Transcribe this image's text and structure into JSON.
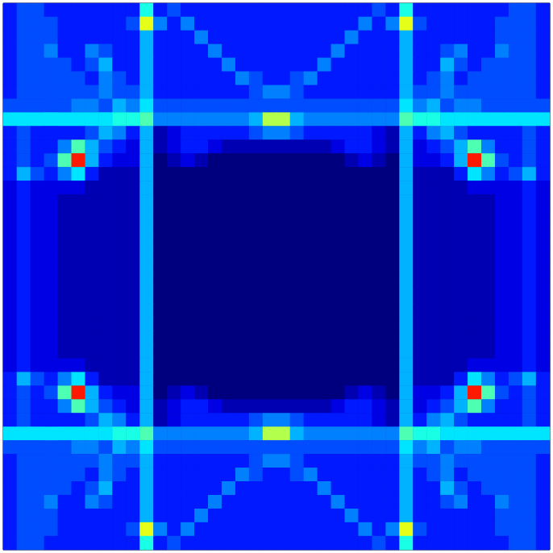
{
  "chart_data": {
    "type": "heatmap",
    "tick_labels": false,
    "zlim": [
      0,
      20
    ],
    "cells": [
      [
        3,
        4,
        4,
        3,
        3,
        3,
        3,
        3,
        3,
        3,
        8,
        3,
        4,
        3,
        3,
        3,
        3,
        3,
        3,
        3,
        3,
        3,
        3,
        3,
        3,
        3,
        3,
        4,
        3,
        8,
        3,
        3,
        3,
        3,
        3,
        3,
        3,
        4,
        4,
        3
      ],
      [
        3,
        4,
        4,
        4,
        3,
        3,
        3,
        3,
        3,
        4,
        12,
        5,
        3,
        5,
        3,
        3,
        3,
        3,
        3,
        3,
        3,
        3,
        3,
        3,
        3,
        3,
        5,
        3,
        5,
        12,
        4,
        3,
        3,
        3,
        3,
        3,
        4,
        4,
        4,
        3
      ],
      [
        3,
        4,
        4,
        4,
        3,
        3,
        3,
        3,
        3,
        3,
        6,
        3,
        3,
        3,
        5,
        3,
        3,
        3,
        3,
        3,
        3,
        3,
        3,
        3,
        3,
        5,
        3,
        3,
        3,
        6,
        3,
        3,
        3,
        3,
        3,
        3,
        4,
        4,
        4,
        3
      ],
      [
        3,
        4,
        4,
        5,
        3,
        3,
        5,
        4,
        3,
        3,
        6,
        3,
        3,
        3,
        3,
        5,
        3,
        3,
        3,
        3,
        3,
        3,
        3,
        3,
        5,
        3,
        3,
        3,
        3,
        6,
        3,
        3,
        4,
        5,
        3,
        3,
        5,
        4,
        4,
        3
      ],
      [
        3,
        4,
        4,
        4,
        4,
        3,
        4,
        6,
        3,
        3,
        6,
        3,
        3,
        3,
        3,
        3,
        5,
        3,
        3,
        3,
        3,
        3,
        3,
        5,
        3,
        3,
        3,
        3,
        3,
        6,
        3,
        3,
        6,
        4,
        3,
        4,
        4,
        4,
        4,
        3
      ],
      [
        3,
        4,
        4,
        4,
        4,
        4,
        3,
        5,
        4,
        3,
        6,
        3,
        3,
        3,
        3,
        3,
        3,
        5,
        4,
        3,
        3,
        4,
        5,
        3,
        3,
        3,
        3,
        3,
        3,
        6,
        3,
        4,
        5,
        3,
        4,
        4,
        4,
        4,
        4,
        3
      ],
      [
        3,
        4,
        4,
        4,
        4,
        4,
        4,
        5,
        4,
        4,
        6,
        3,
        3,
        3,
        3,
        3,
        3,
        3,
        4,
        5,
        5,
        4,
        3,
        3,
        3,
        3,
        3,
        3,
        3,
        6,
        4,
        4,
        5,
        4,
        4,
        4,
        4,
        4,
        4,
        3
      ],
      [
        4,
        4,
        4,
        4,
        4,
        5,
        5,
        4,
        6,
        5,
        7,
        4,
        4,
        4,
        4,
        4,
        4,
        4,
        4,
        4,
        4,
        4,
        4,
        4,
        4,
        4,
        4,
        4,
        4,
        7,
        5,
        6,
        4,
        5,
        5,
        4,
        4,
        4,
        4,
        4
      ],
      [
        7,
        7,
        7,
        7,
        7,
        7,
        7,
        7,
        8,
        8,
        9,
        5,
        5,
        5,
        5,
        5,
        5,
        5,
        6,
        11,
        11,
        6,
        5,
        5,
        5,
        5,
        5,
        5,
        5,
        9,
        8,
        8,
        7,
        7,
        7,
        7,
        7,
        7,
        7,
        7
      ],
      [
        3,
        4,
        3,
        3,
        3,
        3,
        4,
        6,
        5,
        3,
        6,
        1,
        2,
        3,
        3,
        3,
        3,
        3,
        4,
        5,
        5,
        4,
        3,
        3,
        3,
        3,
        3,
        2,
        1,
        6,
        3,
        5,
        6,
        4,
        3,
        3,
        3,
        3,
        4,
        3
      ],
      [
        3,
        4,
        3,
        3,
        5,
        9,
        6,
        4,
        3,
        2,
        6,
        1,
        2,
        3,
        3,
        2,
        1,
        1,
        1,
        1,
        1,
        1,
        1,
        1,
        2,
        3,
        3,
        2,
        1,
        6,
        2,
        3,
        4,
        6,
        9,
        5,
        3,
        3,
        4,
        3
      ],
      [
        3,
        4,
        3,
        4,
        9,
        17,
        6,
        3,
        2,
        2,
        6,
        0,
        1,
        2,
        1,
        0,
        0,
        0,
        0,
        0,
        0,
        0,
        0,
        0,
        0,
        1,
        2,
        1,
        0,
        6,
        2,
        2,
        3,
        6,
        17,
        9,
        4,
        3,
        4,
        3
      ],
      [
        3,
        6,
        4,
        3,
        5,
        7,
        3,
        1,
        1,
        1,
        6,
        0,
        0,
        0,
        0,
        0,
        0,
        0,
        0,
        0,
        0,
        0,
        0,
        0,
        0,
        0,
        0,
        0,
        0,
        6,
        1,
        1,
        1,
        3,
        7,
        5,
        3,
        4,
        6,
        3
      ],
      [
        2,
        3,
        2,
        2,
        2,
        2,
        1,
        1,
        1,
        1,
        6,
        0,
        0,
        0,
        0,
        0,
        0,
        0,
        0,
        0,
        0,
        0,
        0,
        0,
        0,
        0,
        0,
        0,
        0,
        6,
        1,
        1,
        1,
        1,
        2,
        2,
        2,
        2,
        3,
        2
      ],
      [
        2,
        3,
        2,
        2,
        1,
        1,
        1,
        1,
        1,
        1,
        6,
        0,
        0,
        0,
        0,
        0,
        0,
        0,
        0,
        0,
        0,
        0,
        0,
        0,
        0,
        0,
        0,
        0,
        0,
        6,
        1,
        1,
        1,
        1,
        1,
        1,
        2,
        2,
        3,
        2
      ],
      [
        2,
        3,
        2,
        2,
        1,
        1,
        1,
        1,
        1,
        1,
        6,
        0,
        0,
        0,
        0,
        0,
        0,
        0,
        0,
        0,
        0,
        0,
        0,
        0,
        0,
        0,
        0,
        0,
        0,
        6,
        1,
        1,
        1,
        1,
        1,
        1,
        2,
        2,
        3,
        2
      ],
      [
        2,
        3,
        2,
        2,
        1,
        1,
        1,
        1,
        1,
        1,
        6,
        0,
        0,
        0,
        0,
        0,
        0,
        0,
        0,
        0,
        0,
        0,
        0,
        0,
        0,
        0,
        0,
        0,
        0,
        6,
        1,
        1,
        1,
        1,
        1,
        1,
        2,
        2,
        3,
        2
      ],
      [
        2,
        3,
        2,
        2,
        1,
        1,
        1,
        1,
        1,
        1,
        6,
        0,
        0,
        0,
        0,
        0,
        0,
        0,
        0,
        0,
        0,
        0,
        0,
        0,
        0,
        0,
        0,
        0,
        0,
        6,
        1,
        1,
        1,
        1,
        1,
        1,
        2,
        2,
        3,
        2
      ],
      [
        2,
        3,
        2,
        2,
        1,
        1,
        1,
        1,
        1,
        1,
        6,
        0,
        0,
        0,
        0,
        0,
        0,
        0,
        0,
        0,
        0,
        0,
        0,
        0,
        0,
        0,
        0,
        0,
        0,
        6,
        1,
        1,
        1,
        1,
        1,
        1,
        2,
        2,
        3,
        2
      ],
      [
        2,
        3,
        2,
        2,
        1,
        1,
        1,
        1,
        1,
        1,
        6,
        0,
        0,
        0,
        0,
        0,
        0,
        0,
        0,
        0,
        0,
        0,
        0,
        0,
        0,
        0,
        0,
        0,
        0,
        6,
        1,
        1,
        1,
        1,
        1,
        1,
        2,
        2,
        3,
        2
      ],
      [
        2,
        3,
        2,
        2,
        1,
        1,
        1,
        1,
        1,
        1,
        6,
        0,
        0,
        0,
        0,
        0,
        0,
        0,
        0,
        0,
        0,
        0,
        0,
        0,
        0,
        0,
        0,
        0,
        0,
        6,
        1,
        1,
        1,
        1,
        1,
        1,
        2,
        2,
        3,
        2
      ],
      [
        2,
        3,
        2,
        2,
        1,
        1,
        1,
        1,
        1,
        1,
        6,
        0,
        0,
        0,
        0,
        0,
        0,
        0,
        0,
        0,
        0,
        0,
        0,
        0,
        0,
        0,
        0,
        0,
        0,
        6,
        1,
        1,
        1,
        1,
        1,
        1,
        2,
        2,
        3,
        2
      ],
      [
        2,
        3,
        2,
        2,
        1,
        1,
        1,
        1,
        1,
        1,
        6,
        0,
        0,
        0,
        0,
        0,
        0,
        0,
        0,
        0,
        0,
        0,
        0,
        0,
        0,
        0,
        0,
        0,
        0,
        6,
        1,
        1,
        1,
        1,
        1,
        1,
        2,
        2,
        3,
        2
      ],
      [
        2,
        3,
        2,
        2,
        1,
        1,
        1,
        1,
        1,
        1,
        6,
        0,
        0,
        0,
        0,
        0,
        0,
        0,
        0,
        0,
        0,
        0,
        0,
        0,
        0,
        0,
        0,
        0,
        0,
        6,
        1,
        1,
        1,
        1,
        1,
        1,
        2,
        2,
        3,
        2
      ],
      [
        2,
        3,
        2,
        2,
        1,
        1,
        1,
        1,
        1,
        1,
        6,
        0,
        0,
        0,
        0,
        0,
        0,
        0,
        0,
        0,
        0,
        0,
        0,
        0,
        0,
        0,
        0,
        0,
        0,
        6,
        1,
        1,
        1,
        1,
        1,
        1,
        2,
        2,
        3,
        2
      ],
      [
        2,
        3,
        2,
        2,
        1,
        1,
        1,
        1,
        1,
        1,
        6,
        0,
        0,
        0,
        0,
        0,
        0,
        0,
        0,
        0,
        0,
        0,
        0,
        0,
        0,
        0,
        0,
        0,
        0,
        6,
        1,
        1,
        1,
        1,
        1,
        1,
        2,
        2,
        3,
        2
      ],
      [
        2,
        3,
        2,
        2,
        2,
        2,
        1,
        1,
        1,
        1,
        6,
        0,
        0,
        0,
        0,
        0,
        0,
        0,
        0,
        0,
        0,
        0,
        0,
        0,
        0,
        0,
        0,
        0,
        0,
        6,
        1,
        1,
        1,
        1,
        2,
        2,
        2,
        2,
        3,
        2
      ],
      [
        3,
        6,
        4,
        3,
        5,
        7,
        3,
        1,
        1,
        1,
        6,
        0,
        0,
        0,
        0,
        0,
        0,
        0,
        0,
        0,
        0,
        0,
        0,
        0,
        0,
        0,
        0,
        0,
        0,
        6,
        1,
        1,
        1,
        3,
        7,
        5,
        3,
        4,
        6,
        3
      ],
      [
        3,
        4,
        3,
        4,
        9,
        17,
        6,
        3,
        2,
        2,
        6,
        0,
        1,
        2,
        1,
        0,
        0,
        0,
        0,
        0,
        0,
        0,
        0,
        0,
        0,
        1,
        2,
        1,
        0,
        6,
        2,
        2,
        3,
        6,
        17,
        9,
        4,
        3,
        4,
        3
      ],
      [
        3,
        4,
        3,
        3,
        5,
        9,
        6,
        4,
        3,
        2,
        6,
        1,
        2,
        3,
        3,
        2,
        1,
        1,
        1,
        1,
        1,
        1,
        1,
        1,
        2,
        3,
        3,
        2,
        1,
        6,
        2,
        3,
        4,
        6,
        9,
        5,
        3,
        3,
        4,
        3
      ],
      [
        3,
        4,
        3,
        3,
        3,
        3,
        4,
        6,
        5,
        3,
        6,
        1,
        2,
        3,
        3,
        3,
        3,
        3,
        4,
        5,
        5,
        4,
        3,
        3,
        3,
        3,
        3,
        2,
        1,
        6,
        3,
        5,
        6,
        4,
        3,
        3,
        3,
        3,
        4,
        3
      ],
      [
        7,
        7,
        7,
        7,
        7,
        7,
        7,
        7,
        8,
        8,
        9,
        5,
        5,
        5,
        5,
        5,
        5,
        5,
        6,
        11,
        11,
        6,
        5,
        5,
        5,
        5,
        5,
        5,
        5,
        9,
        8,
        8,
        7,
        7,
        7,
        7,
        7,
        7,
        7,
        7
      ],
      [
        4,
        4,
        4,
        4,
        4,
        5,
        5,
        4,
        6,
        5,
        7,
        4,
        4,
        4,
        4,
        4,
        4,
        4,
        4,
        4,
        4,
        4,
        4,
        4,
        4,
        4,
        4,
        4,
        4,
        7,
        5,
        6,
        4,
        5,
        5,
        4,
        4,
        4,
        4,
        4
      ],
      [
        3,
        4,
        4,
        4,
        4,
        4,
        4,
        5,
        4,
        4,
        6,
        3,
        3,
        3,
        3,
        3,
        3,
        3,
        4,
        5,
        5,
        4,
        3,
        3,
        3,
        3,
        3,
        3,
        3,
        6,
        4,
        4,
        5,
        4,
        4,
        4,
        4,
        4,
        4,
        3
      ],
      [
        3,
        4,
        4,
        4,
        4,
        4,
        3,
        5,
        4,
        3,
        6,
        3,
        3,
        3,
        3,
        3,
        3,
        5,
        4,
        3,
        3,
        4,
        5,
        3,
        3,
        3,
        3,
        3,
        3,
        6,
        3,
        4,
        5,
        3,
        4,
        4,
        4,
        4,
        4,
        3
      ],
      [
        3,
        4,
        4,
        4,
        4,
        3,
        4,
        6,
        3,
        3,
        6,
        3,
        3,
        3,
        3,
        3,
        5,
        3,
        3,
        3,
        3,
        3,
        3,
        5,
        3,
        3,
        3,
        3,
        3,
        6,
        3,
        3,
        6,
        4,
        3,
        4,
        4,
        4,
        4,
        3
      ],
      [
        3,
        4,
        4,
        5,
        3,
        3,
        5,
        4,
        3,
        3,
        6,
        3,
        3,
        3,
        3,
        5,
        3,
        3,
        3,
        3,
        3,
        3,
        3,
        3,
        5,
        3,
        3,
        3,
        3,
        6,
        3,
        3,
        4,
        5,
        3,
        3,
        5,
        4,
        4,
        3
      ],
      [
        3,
        4,
        4,
        4,
        3,
        3,
        3,
        3,
        3,
        3,
        6,
        3,
        3,
        3,
        5,
        3,
        3,
        3,
        3,
        3,
        3,
        3,
        3,
        3,
        3,
        5,
        3,
        3,
        3,
        6,
        3,
        3,
        3,
        3,
        3,
        3,
        4,
        4,
        4,
        3
      ],
      [
        3,
        4,
        4,
        4,
        3,
        3,
        3,
        3,
        3,
        4,
        12,
        5,
        3,
        5,
        3,
        3,
        3,
        3,
        3,
        3,
        3,
        3,
        3,
        3,
        3,
        3,
        5,
        3,
        5,
        12,
        4,
        3,
        3,
        3,
        3,
        3,
        4,
        4,
        4,
        3
      ],
      [
        3,
        4,
        4,
        3,
        3,
        3,
        3,
        3,
        3,
        3,
        8,
        3,
        4,
        3,
        3,
        3,
        3,
        3,
        3,
        3,
        3,
        3,
        3,
        3,
        3,
        3,
        3,
        4,
        3,
        8,
        3,
        3,
        3,
        3,
        3,
        3,
        3,
        4,
        4,
        3
      ]
    ]
  }
}
